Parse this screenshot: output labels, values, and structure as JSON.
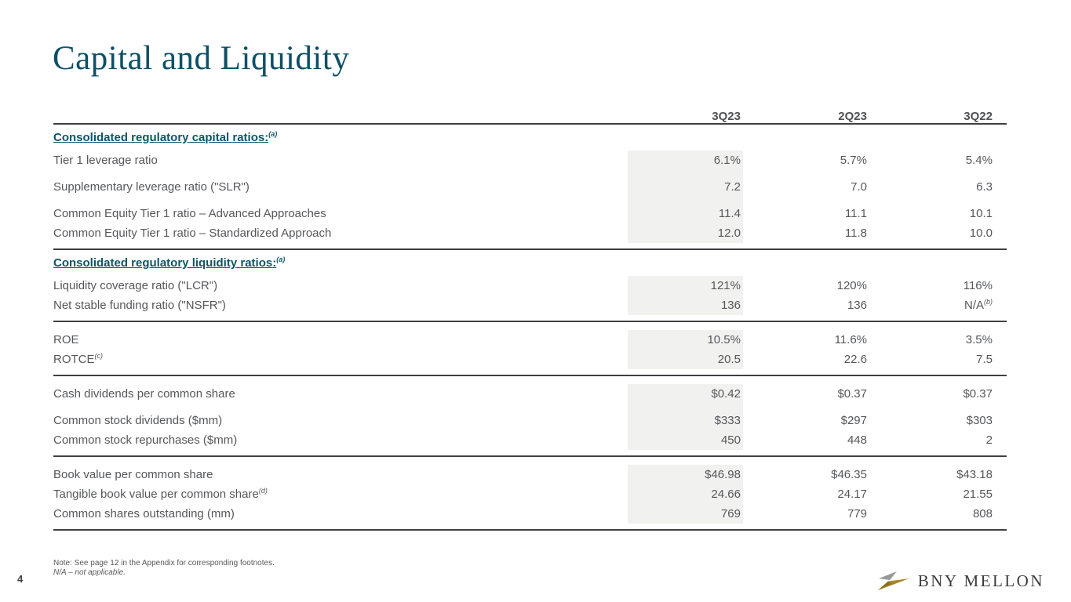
{
  "page": {
    "number": "4",
    "title": "Capital and Liquidity"
  },
  "colors": {
    "title_teal": "#0e4f66",
    "section_header_teal": "#0e5568",
    "body_text_gray": "#55575a",
    "rule_gray": "#3f4042",
    "highlight_column_bg": "#f1f1ef",
    "logo_gold": "#a5882c",
    "logo_gray": "#97989a",
    "logo_text_gray": "#3b3b3d"
  },
  "table": {
    "columns": [
      "3Q23",
      "2Q23",
      "3Q22"
    ],
    "highlighted_column": "3Q23",
    "sections": [
      {
        "header": "Consolidated regulatory capital ratios:",
        "header_sup": "(a)",
        "rows": [
          {
            "label": "Tier 1 leverage ratio",
            "values": [
              "6.1%",
              "5.7%",
              "5.4%"
            ]
          },
          {
            "label": "Supplementary leverage ratio (\"SLR\")",
            "values": [
              "7.2",
              "7.0",
              "6.3"
            ],
            "spaced": true
          },
          {
            "label": "Common Equity Tier 1 ratio – Advanced Approaches",
            "values": [
              "11.4",
              "11.1",
              "10.1"
            ],
            "spaced": true
          },
          {
            "label": "Common Equity Tier 1 ratio – Standardized Approach",
            "values": [
              "12.0",
              "11.8",
              "10.0"
            ]
          }
        ]
      },
      {
        "header": "Consolidated regulatory liquidity ratios:",
        "header_sup": "(a)",
        "rows": [
          {
            "label": "Liquidity coverage ratio (\"LCR\")",
            "values": [
              "121%",
              "120%",
              "116%"
            ]
          },
          {
            "label": "Net stable funding ratio (\"NSFR\")",
            "values": [
              "136",
              "136",
              "N/A"
            ],
            "value_sups": [
              null,
              null,
              "(b)"
            ]
          }
        ]
      },
      {
        "header": null,
        "rows": [
          {
            "label": "ROE",
            "values": [
              "10.5%",
              "11.6%",
              "3.5%"
            ]
          },
          {
            "label": "ROTCE",
            "label_sup": "(c)",
            "values": [
              "20.5",
              "22.6",
              "7.5"
            ]
          }
        ]
      },
      {
        "header": null,
        "rows": [
          {
            "label": "Cash dividends per common share",
            "values": [
              "$0.42",
              "$0.37",
              "$0.37"
            ]
          },
          {
            "label": "Common stock dividends ($mm)",
            "values": [
              "$333",
              "$297",
              "$303"
            ],
            "spaced": true
          },
          {
            "label": "Common stock repurchases ($mm)",
            "values": [
              "450",
              "448",
              "2"
            ]
          }
        ]
      },
      {
        "header": null,
        "rows": [
          {
            "label": "Book value per common share",
            "values": [
              "$46.98",
              "$46.35",
              "$43.18"
            ]
          },
          {
            "label": "Tangible book value per common share",
            "label_sup": "(d)",
            "values": [
              "24.66",
              "24.17",
              "21.55"
            ]
          },
          {
            "label": "Common shares outstanding (mm)",
            "values": [
              "769",
              "779",
              "808"
            ]
          }
        ]
      }
    ]
  },
  "footnotes": {
    "note": "Note: See page 12 in the Appendix for corresponding footnotes.",
    "na": "N/A – not applicable."
  },
  "logo": {
    "text": "BNY MELLON"
  }
}
